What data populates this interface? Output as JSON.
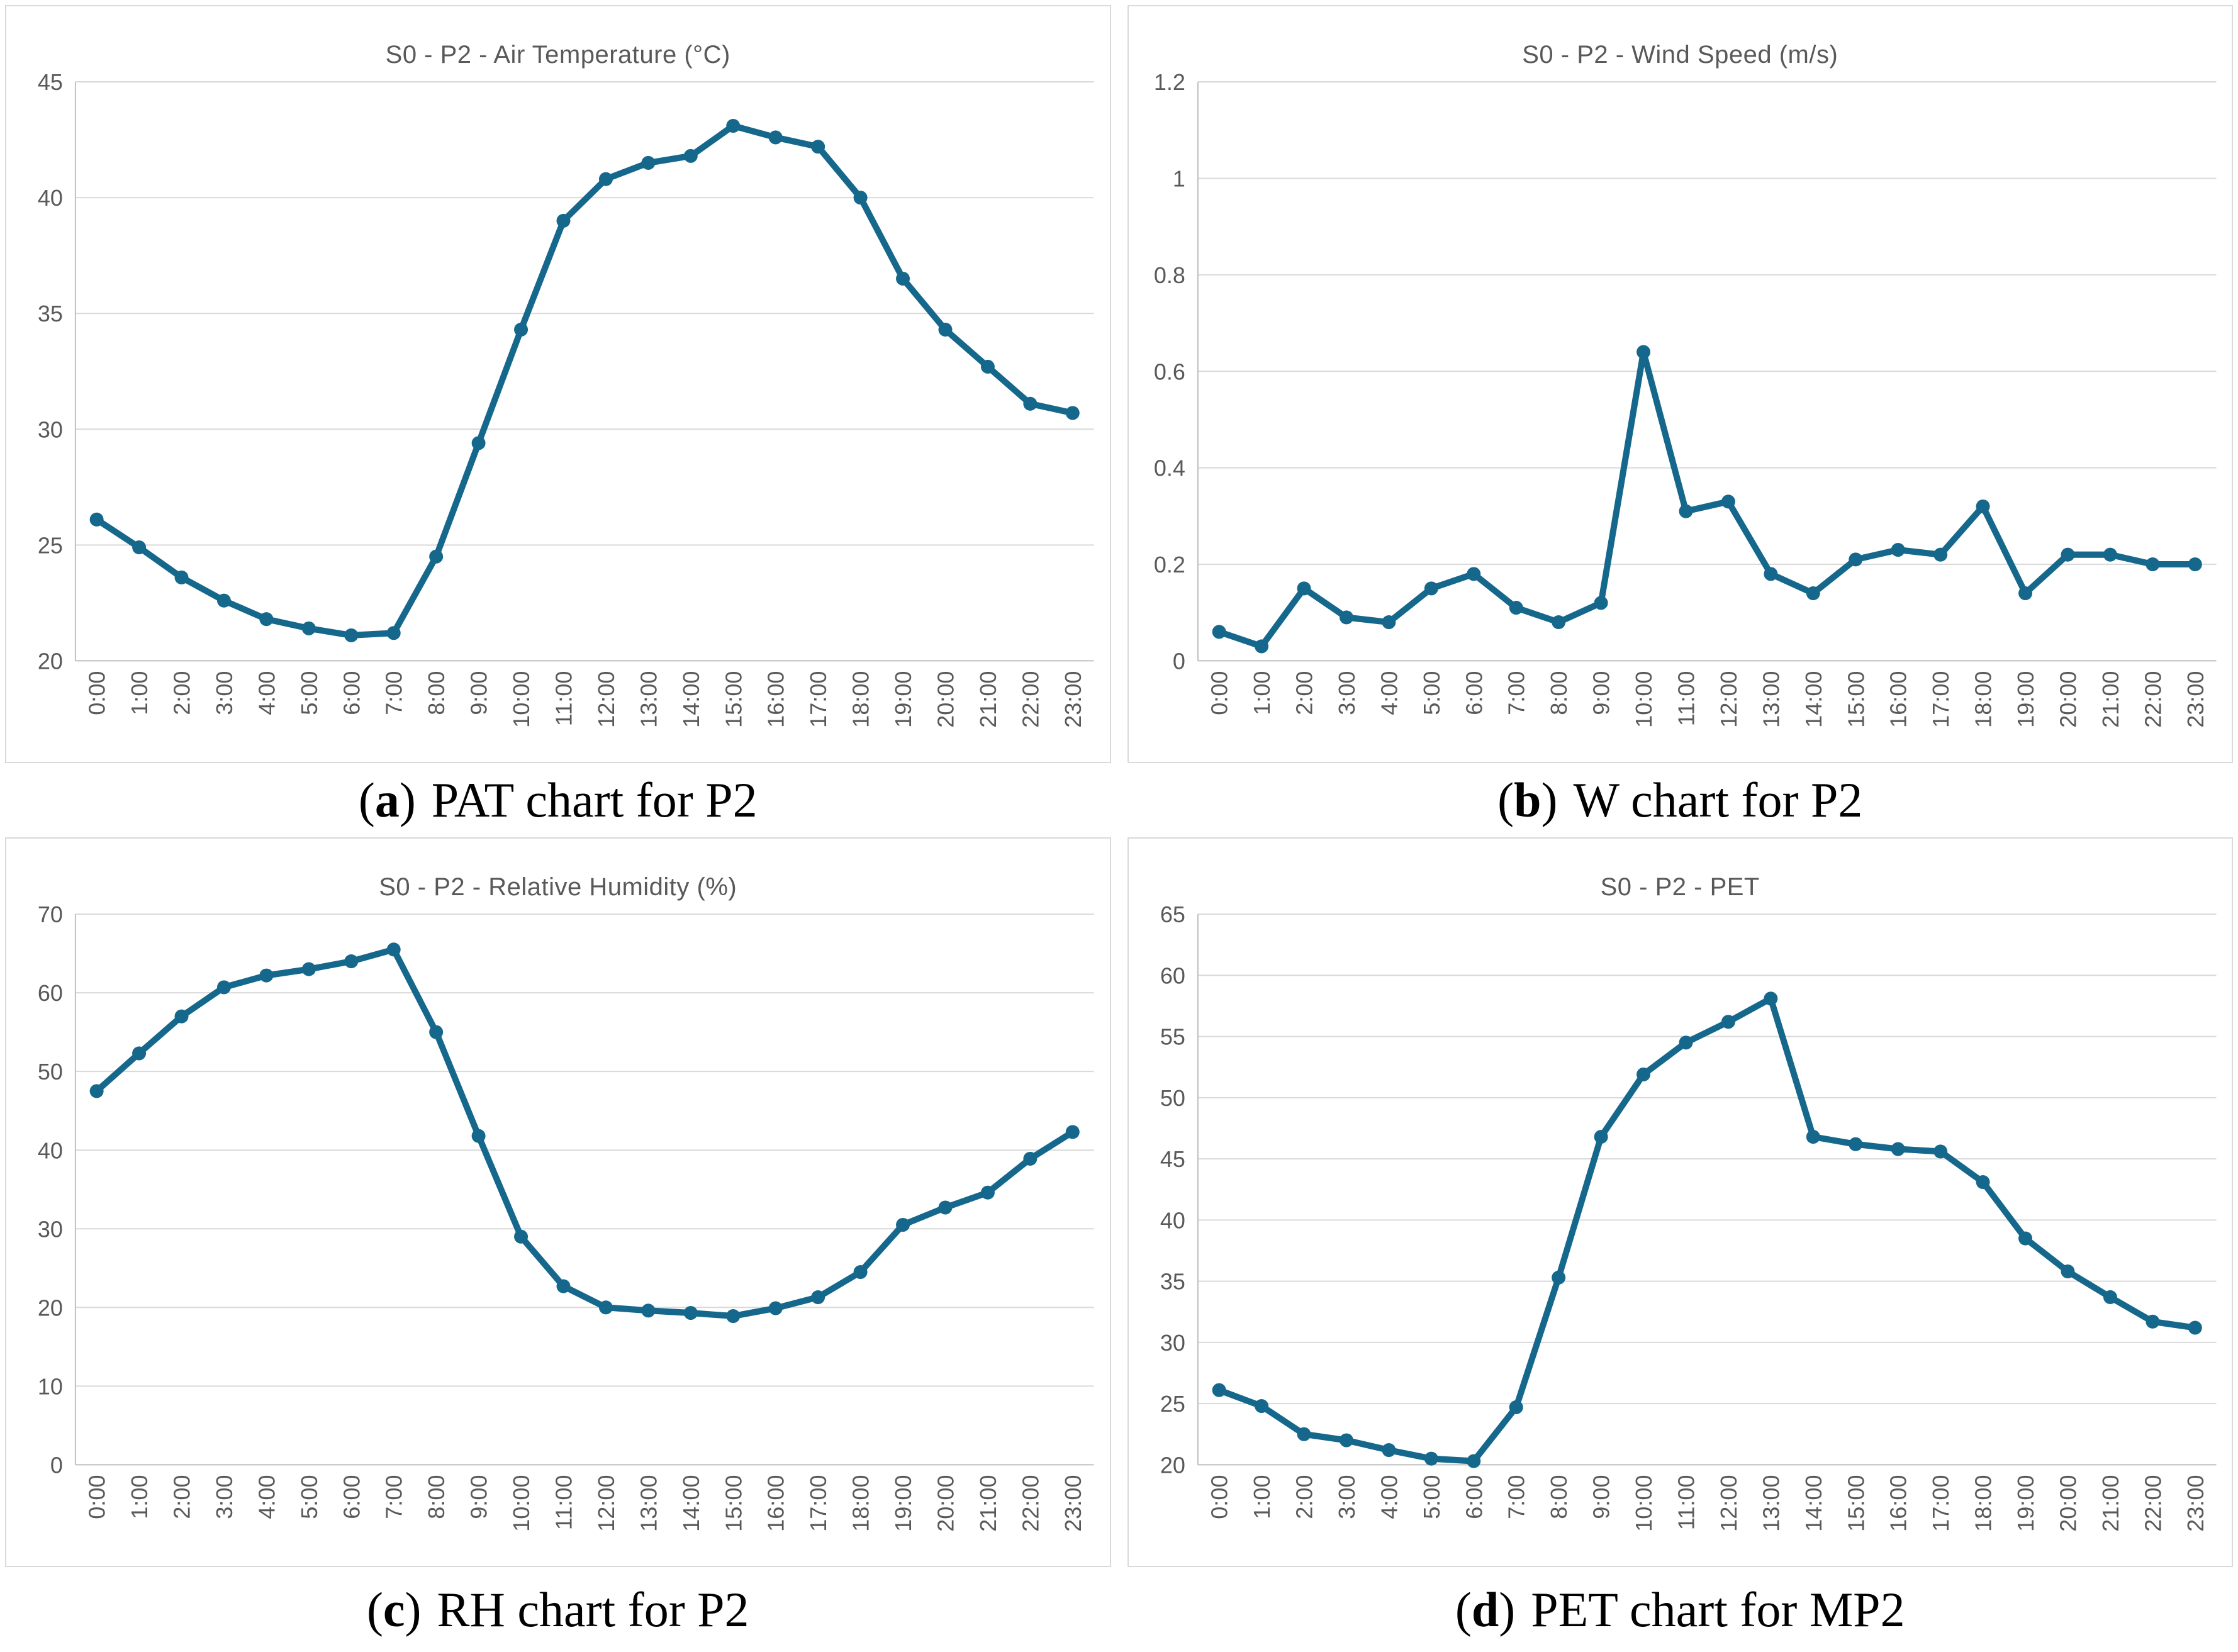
{
  "colors": {
    "series_line": "#15688C",
    "gridline": "#D9D9D9",
    "axis_line": "#BFBFBF",
    "title_text": "#595959",
    "tick_text": "#595959",
    "panel_border": "#D9D9D9",
    "caption_text": "#000000",
    "background": "#FFFFFF"
  },
  "chart_data": [
    {
      "type": "line",
      "title": "S0 - P2 - Air Temperature (°C)",
      "caption": {
        "open": "(",
        "letter": "a",
        "close": ")",
        "text": "PAT chart for P2"
      },
      "xlabel": "",
      "ylabel": "",
      "ylim": [
        20,
        45
      ],
      "ytick_step": 5,
      "grid": true,
      "legend": "none",
      "marker": "circle",
      "categories": [
        "0:00",
        "1:00",
        "2:00",
        "3:00",
        "4:00",
        "5:00",
        "6:00",
        "7:00",
        "8:00",
        "9:00",
        "10:00",
        "11:00",
        "12:00",
        "13:00",
        "14:00",
        "15:00",
        "16:00",
        "17:00",
        "18:00",
        "19:00",
        "20:00",
        "21:00",
        "22:00",
        "23:00"
      ],
      "values": [
        26.1,
        24.9,
        23.6,
        22.6,
        21.8,
        21.4,
        21.1,
        21.2,
        24.5,
        29.4,
        34.3,
        39.0,
        40.8,
        41.5,
        41.8,
        43.1,
        42.6,
        42.2,
        40.0,
        36.5,
        34.3,
        32.7,
        31.1,
        30.7
      ]
    },
    {
      "type": "line",
      "title": "S0 - P2 - Wind Speed (m/s)",
      "caption": {
        "open": "(",
        "letter": "b",
        "close": ")",
        "text": "W chart for P2"
      },
      "xlabel": "",
      "ylabel": "",
      "ylim": [
        0,
        1.2
      ],
      "ytick_step": 0.2,
      "grid": true,
      "legend": "none",
      "marker": "circle",
      "categories": [
        "0:00",
        "1:00",
        "2:00",
        "3:00",
        "4:00",
        "5:00",
        "6:00",
        "7:00",
        "8:00",
        "9:00",
        "10:00",
        "11:00",
        "12:00",
        "13:00",
        "14:00",
        "15:00",
        "16:00",
        "17:00",
        "18:00",
        "19:00",
        "20:00",
        "21:00",
        "22:00",
        "23:00"
      ],
      "values": [
        0.06,
        0.03,
        0.15,
        0.09,
        0.08,
        0.15,
        0.18,
        0.11,
        0.08,
        0.12,
        0.64,
        0.31,
        0.33,
        0.18,
        0.14,
        0.21,
        0.23,
        0.22,
        0.32,
        0.14,
        0.22,
        0.22,
        0.2,
        0.2
      ]
    },
    {
      "type": "line",
      "title": "S0 - P2 - Relative Humidity (%)",
      "caption": {
        "open": "(",
        "letter": "c",
        "close": ")",
        "text": "RH chart for P2"
      },
      "xlabel": "",
      "ylabel": "",
      "ylim": [
        0,
        70
      ],
      "ytick_step": 10,
      "grid": true,
      "legend": "none",
      "marker": "circle",
      "categories": [
        "0:00",
        "1:00",
        "2:00",
        "3:00",
        "4:00",
        "5:00",
        "6:00",
        "7:00",
        "8:00",
        "9:00",
        "10:00",
        "11:00",
        "12:00",
        "13:00",
        "14:00",
        "15:00",
        "16:00",
        "17:00",
        "18:00",
        "19:00",
        "20:00",
        "21:00",
        "22:00",
        "23:00"
      ],
      "values": [
        47.5,
        52.3,
        57.0,
        60.7,
        62.2,
        63.0,
        64.0,
        65.5,
        55.0,
        41.8,
        29.0,
        22.7,
        20.0,
        19.6,
        19.3,
        18.9,
        19.9,
        21.3,
        24.5,
        30.5,
        32.7,
        34.6,
        38.9,
        42.3
      ]
    },
    {
      "type": "line",
      "title": "S0 - P2 - PET",
      "caption": {
        "open": "(",
        "letter": "d",
        "close": ")",
        "text": "PET chart for MP2"
      },
      "xlabel": "",
      "ylabel": "",
      "ylim": [
        20,
        65
      ],
      "ytick_step": 5,
      "grid": true,
      "legend": "none",
      "marker": "circle",
      "categories": [
        "0:00",
        "1:00",
        "2:00",
        "3:00",
        "4:00",
        "5:00",
        "6:00",
        "7:00",
        "8:00",
        "9:00",
        "10:00",
        "11:00",
        "12:00",
        "13:00",
        "14:00",
        "15:00",
        "16:00",
        "17:00",
        "18:00",
        "19:00",
        "20:00",
        "21:00",
        "22:00",
        "23:00"
      ],
      "values": [
        26.1,
        24.8,
        22.5,
        22.0,
        21.2,
        20.5,
        20.3,
        24.7,
        35.3,
        46.8,
        51.9,
        54.5,
        56.2,
        58.1,
        46.8,
        46.2,
        45.8,
        45.6,
        43.1,
        38.5,
        35.8,
        33.7,
        31.7,
        31.2
      ]
    }
  ]
}
